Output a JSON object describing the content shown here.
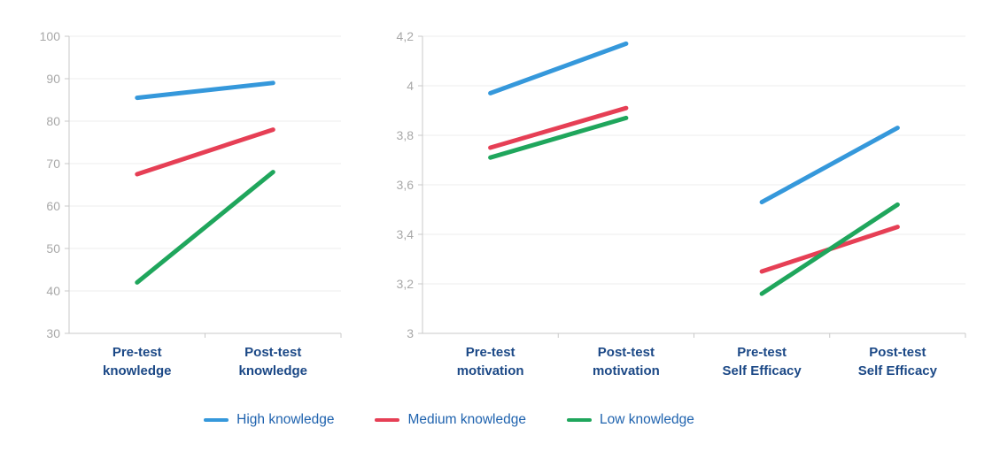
{
  "colors": {
    "series_high": "#3598DB",
    "series_medium": "#E63F55",
    "series_low": "#1FA65C",
    "axis_line": "#C9C9C9",
    "gridline": "#ECECEC",
    "tick_label": "#A8A8A8",
    "category_label": "#1B4886",
    "legend_text": "#1E62AE",
    "background": "#FFFFFF"
  },
  "legend": {
    "items": [
      {
        "label": "High knowledge",
        "color": "#3598DB"
      },
      {
        "label": "Medium knowledge",
        "color": "#E63F55"
      },
      {
        "label": "Low knowledge",
        "color": "#1FA65C"
      }
    ]
  },
  "chart_data": [
    {
      "type": "line",
      "title": "",
      "xlabel": "",
      "ylabel": "",
      "grid": true,
      "legend_position": "shared-bottom",
      "categories": [
        [
          "Pre-test",
          "knowledge"
        ],
        [
          "Post-test",
          "knowledge"
        ]
      ],
      "ylim": [
        30,
        100
      ],
      "yticks": [
        30,
        40,
        50,
        60,
        70,
        80,
        90,
        100
      ],
      "ytick_labels": [
        "30",
        "40",
        "50",
        "60",
        "70",
        "80",
        "90",
        "100"
      ],
      "series": [
        {
          "name": "High knowledge",
          "color": "#3598DB",
          "values": [
            85.5,
            89
          ]
        },
        {
          "name": "Medium knowledge",
          "color": "#E63F55",
          "values": [
            67.5,
            78
          ]
        },
        {
          "name": "Low knowledge",
          "color": "#1FA65C",
          "values": [
            42,
            68
          ]
        }
      ]
    },
    {
      "type": "line",
      "title": "",
      "xlabel": "",
      "ylabel": "",
      "grid": true,
      "legend_position": "shared-bottom",
      "categories": [
        [
          "Pre-test",
          "motivation"
        ],
        [
          "Post-test",
          "motivation"
        ],
        [
          "Pre-test",
          "Self Efficacy"
        ],
        [
          "Post-test",
          "Self Efficacy"
        ]
      ],
      "ylim": [
        3,
        4.2
      ],
      "yticks": [
        3,
        3.2,
        3.4,
        3.6,
        3.8,
        4,
        4.2
      ],
      "ytick_labels": [
        "3",
        "3,2",
        "3,4",
        "3,6",
        "3,8",
        "4",
        "4,2"
      ],
      "series": [
        {
          "name": "High knowledge",
          "color": "#3598DB",
          "values": [
            3.97,
            4.17,
            3.53,
            3.83
          ],
          "segments": [
            [
              0,
              1
            ],
            [
              2,
              3
            ]
          ]
        },
        {
          "name": "Medium knowledge",
          "color": "#E63F55",
          "values": [
            3.75,
            3.91,
            3.25,
            3.43
          ],
          "segments": [
            [
              0,
              1
            ],
            [
              2,
              3
            ]
          ]
        },
        {
          "name": "Low knowledge",
          "color": "#1FA65C",
          "values": [
            3.71,
            3.87,
            3.16,
            3.52
          ],
          "segments": [
            [
              0,
              1
            ],
            [
              2,
              3
            ]
          ]
        }
      ]
    }
  ]
}
